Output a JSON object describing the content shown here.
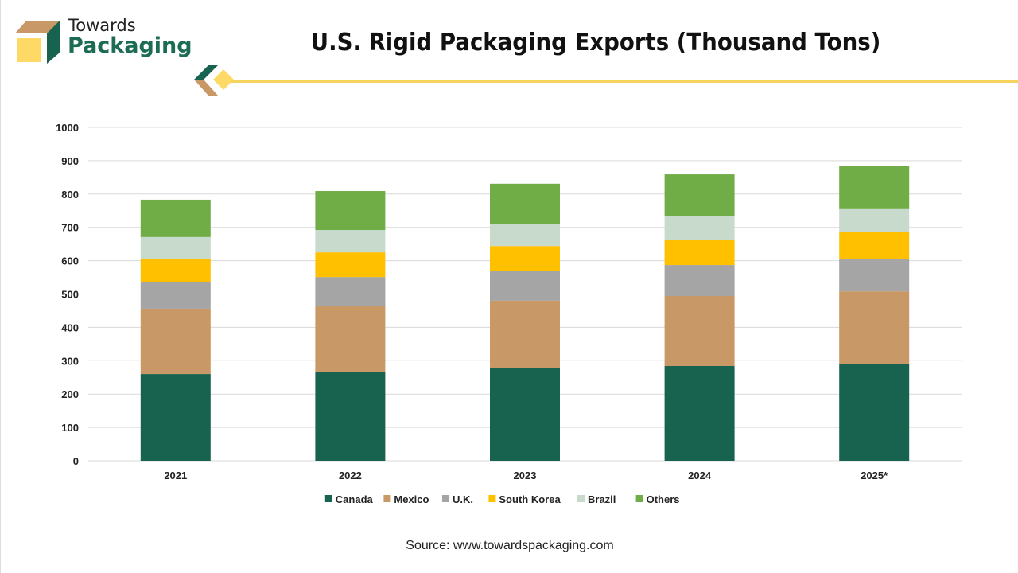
{
  "brand": {
    "line1": "Towards",
    "line2": "Packaging"
  },
  "source": "Source: www.towardspackaging.com",
  "chart_data": {
    "type": "bar",
    "stacked": true,
    "title": "U.S. Rigid Packaging Exports (Thousand Tons)",
    "xlabel": "",
    "ylabel": "",
    "categories": [
      "2021",
      "2022",
      "2023",
      "2024",
      "2025*"
    ],
    "ylim": [
      0,
      1000
    ],
    "yticks": [
      0,
      100,
      200,
      300,
      400,
      500,
      600,
      700,
      800,
      900,
      1000
    ],
    "grid": true,
    "legend_position": "bottom",
    "series": [
      {
        "name": "Canada",
        "color": "#17634f",
        "values": [
          260,
          267,
          277,
          284,
          291
        ]
      },
      {
        "name": "Mexico",
        "color": "#c89866",
        "values": [
          196,
          198,
          203,
          210,
          217
        ]
      },
      {
        "name": "U.K.",
        "color": "#a5a5a5",
        "values": [
          81,
          86,
          88,
          93,
          96
        ]
      },
      {
        "name": "South Korea",
        "color": "#ffc000",
        "values": [
          69,
          74,
          76,
          76,
          81
        ]
      },
      {
        "name": "Brazil",
        "color": "#c8dacb",
        "values": [
          65,
          67,
          67,
          72,
          72
        ]
      },
      {
        "name": "Others",
        "color": "#70ad47",
        "values": [
          112,
          117,
          120,
          124,
          126
        ]
      }
    ]
  }
}
